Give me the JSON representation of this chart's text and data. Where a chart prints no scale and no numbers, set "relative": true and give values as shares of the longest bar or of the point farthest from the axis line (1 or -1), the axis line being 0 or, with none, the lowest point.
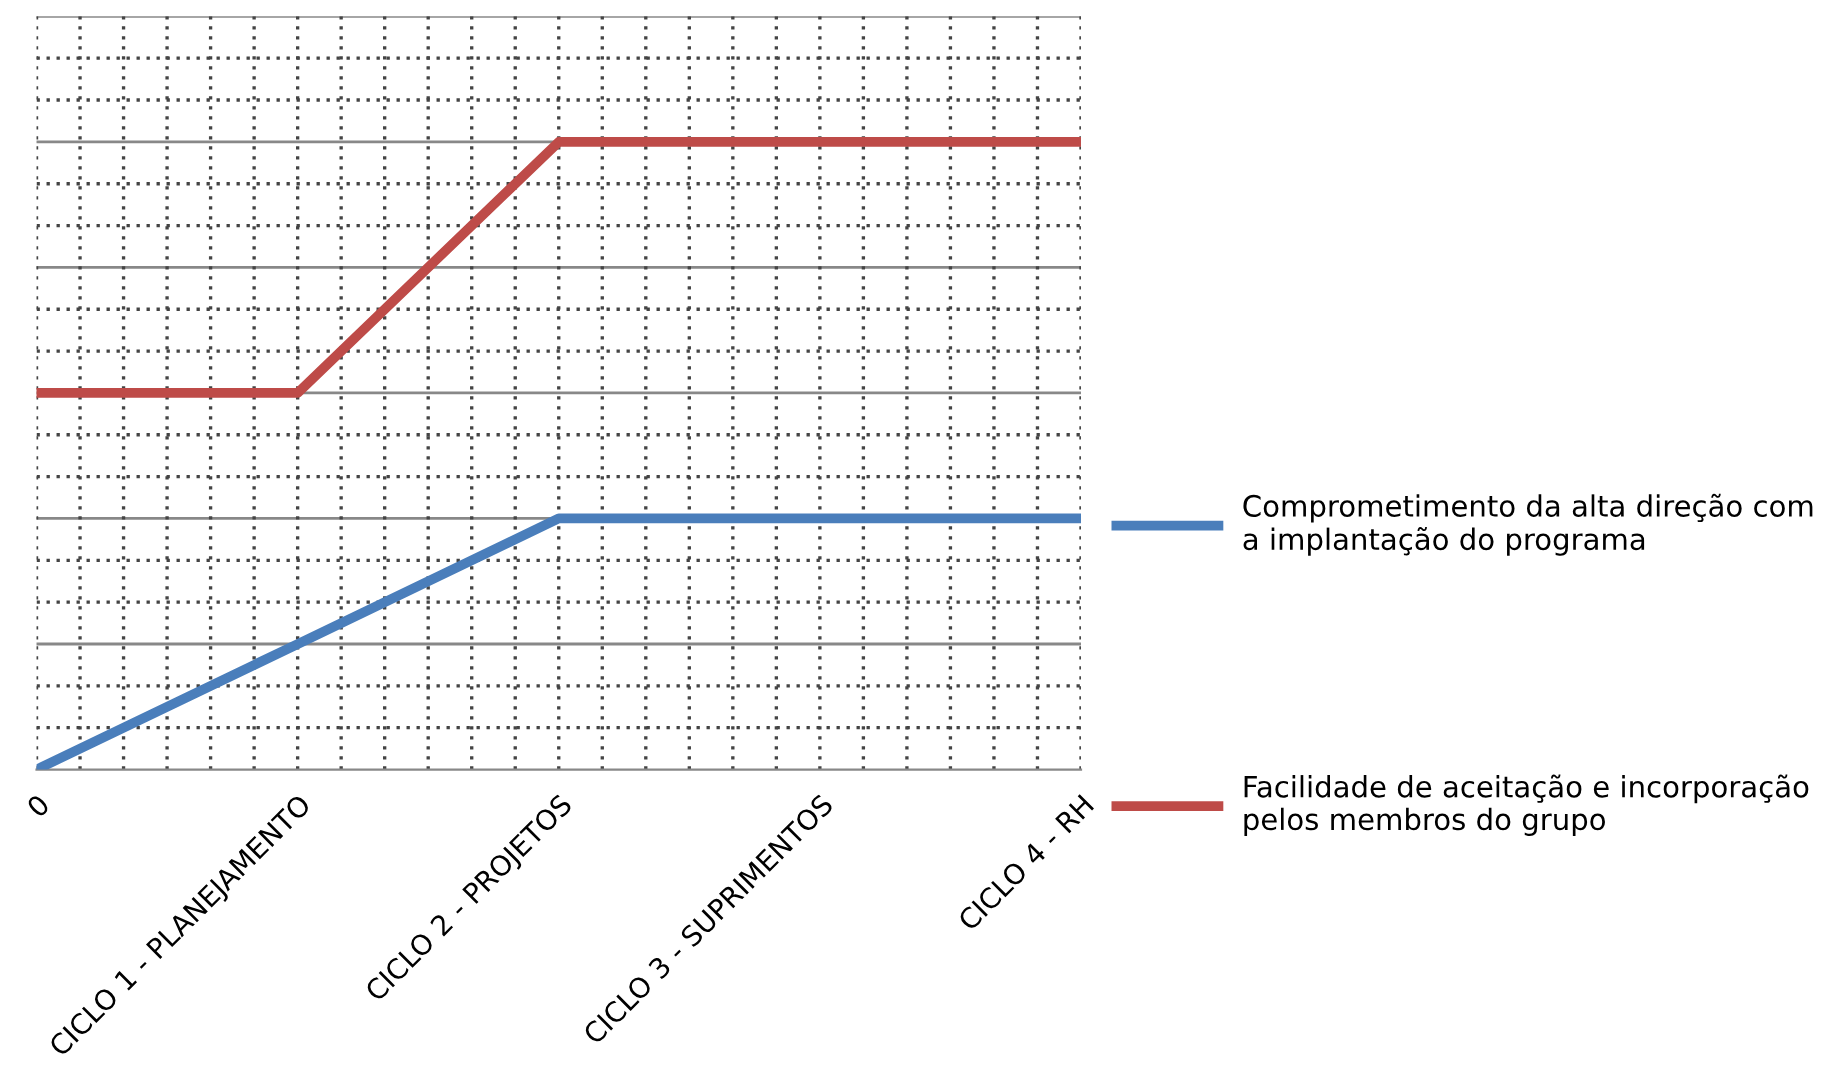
{
  "chart_data": {
    "type": "line",
    "relative": true,
    "categories": [
      "0",
      "CICLO 1 - PLANEJAMENTO",
      "CICLO 2 - PROJETOS",
      "CICLO 3 - SUPRIMENTOS",
      "CICLO 4 - RH"
    ],
    "series": [
      {
        "name": "Comprometimento da alta direção com\na implantação do programa",
        "color": "#4a7ebb",
        "values": [
          0,
          0.2,
          0.4,
          0.4,
          0.4
        ]
      },
      {
        "name": "Facilidade de aceitação e incorporação\npelos membros do grupo",
        "color": "#be4b48",
        "values": [
          0.6,
          0.6,
          1,
          1,
          1
        ]
      }
    ],
    "grid": true,
    "legend": "right",
    "marker": "none",
    "line_style": "solid"
  }
}
